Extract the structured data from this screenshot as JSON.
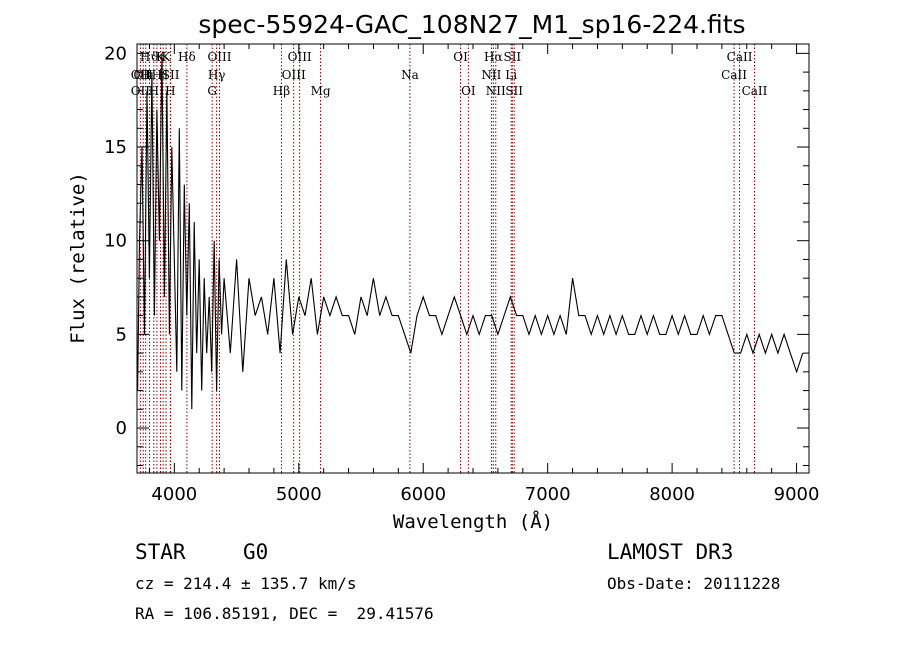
{
  "chart_data": {
    "type": "line",
    "title": "spec-55924-GAC_108N27_M1_sp16-224.fits",
    "xlabel": "Wavelength (Å)",
    "ylabel": "Flux (relative)",
    "xlim": [
      3700,
      9100
    ],
    "ylim": [
      -2.4,
      20.5
    ],
    "xticks": [
      4000,
      5000,
      6000,
      7000,
      8000,
      9000
    ],
    "yticks": [
      0,
      5,
      10,
      15,
      20
    ],
    "grid": false,
    "legend": "none",
    "line_color": "#000000",
    "marker_color": "#8b0000",
    "series": [
      {
        "x": [
          3705,
          3720,
          3740,
          3760,
          3780,
          3800,
          3820,
          3840,
          3860,
          3880,
          3900,
          3920,
          3940,
          3960,
          3980,
          4000,
          4020,
          4040,
          4060,
          4080,
          4100,
          4120,
          4140,
          4160,
          4180,
          4200,
          4220,
          4240,
          4260,
          4280,
          4300,
          4320,
          4340,
          4360,
          4380,
          4400,
          4450,
          4500,
          4550,
          4600,
          4650,
          4700,
          4750,
          4800,
          4850,
          4900,
          4950,
          5000,
          5050,
          5100,
          5150,
          5200,
          5250,
          5300,
          5350,
          5400,
          5450,
          5500,
          5550,
          5600,
          5650,
          5700,
          5750,
          5800,
          5850,
          5900,
          5950,
          6000,
          6050,
          6100,
          6150,
          6200,
          6250,
          6300,
          6350,
          6400,
          6450,
          6500,
          6550,
          6600,
          6650,
          6700,
          6750,
          6800,
          6850,
          6900,
          6950,
          7000,
          7050,
          7100,
          7150,
          7200,
          7250,
          7300,
          7350,
          7400,
          7450,
          7500,
          7550,
          7600,
          7650,
          7700,
          7750,
          7800,
          7850,
          7900,
          7950,
          8000,
          8050,
          8100,
          8150,
          8200,
          8250,
          8300,
          8350,
          8400,
          8450,
          8500,
          8550,
          8600,
          8650,
          8700,
          8750,
          8800,
          8850,
          8900,
          8950,
          9000,
          9050
        ],
        "y": [
          2,
          10,
          15,
          5,
          18,
          8,
          19,
          6,
          17,
          10,
          20,
          7,
          18,
          5,
          15,
          9,
          3,
          16,
          2,
          13,
          6,
          12,
          1,
          11,
          4,
          9,
          2,
          8,
          4,
          7,
          3,
          10,
          2,
          9,
          5,
          8,
          4,
          9,
          3,
          8,
          6,
          7,
          5,
          8,
          4,
          9,
          5,
          7,
          6,
          8,
          5,
          7,
          6,
          7,
          6,
          6,
          5,
          7,
          6,
          8,
          6,
          7,
          6,
          6,
          5,
          4,
          6,
          7,
          6,
          6,
          5,
          6,
          7,
          6,
          5,
          6,
          5,
          6,
          6,
          5,
          6,
          7,
          6,
          6,
          5,
          6,
          5,
          6,
          5,
          6,
          5,
          8,
          6,
          6,
          5,
          6,
          5,
          6,
          5,
          6,
          5,
          5,
          6,
          5,
          6,
          5,
          5,
          6,
          5,
          6,
          5,
          5,
          6,
          5,
          6,
          6,
          5,
          4,
          4,
          5,
          4,
          5,
          4,
          5,
          4,
          5,
          4,
          3,
          4
        ]
      }
    ],
    "line_markers": [
      {
        "x": 3727,
        "label": "OII",
        "row": 1
      },
      {
        "x": 3727,
        "label": "OII",
        "row": 2
      },
      {
        "x": 3750,
        "label": "OII",
        "row": 1
      },
      {
        "x": 3770,
        "label": "H",
        "row": 1
      },
      {
        "x": 3800,
        "label": "Hϑ",
        "row": 0
      },
      {
        "x": 3835,
        "label": "H",
        "row": 2
      },
      {
        "x": 3860,
        "label": "H",
        "row": 1
      },
      {
        "x": 3889,
        "label": "K",
        "row": 0
      },
      {
        "x": 3910,
        "label": "H",
        "row": 1
      },
      {
        "x": 3933,
        "label": "K",
        "row": 0
      },
      {
        "x": 3968,
        "label": "H",
        "row": 2
      },
      {
        "x": 3970,
        "label": "SII",
        "row": 1
      },
      {
        "x": 4101,
        "label": "Hδ",
        "row": 0
      },
      {
        "x": 4304,
        "label": "G",
        "row": 2
      },
      {
        "x": 4340,
        "label": "Hγ",
        "row": 1
      },
      {
        "x": 4363,
        "label": "OIII",
        "row": 0
      },
      {
        "x": 4861,
        "label": "Hβ",
        "row": 2
      },
      {
        "x": 4959,
        "label": "OIII",
        "row": 1
      },
      {
        "x": 5007,
        "label": "OIII",
        "row": 0
      },
      {
        "x": 5175,
        "label": "Mg",
        "row": 2
      },
      {
        "x": 5893,
        "label": "Na",
        "row": 1
      },
      {
        "x": 6300,
        "label": "OI",
        "row": 0
      },
      {
        "x": 6363,
        "label": "OI",
        "row": 2
      },
      {
        "x": 6548,
        "label": "NII",
        "row": 1
      },
      {
        "x": 6563,
        "label": "Hα",
        "row": 0
      },
      {
        "x": 6583,
        "label": "NII",
        "row": 2
      },
      {
        "x": 6707,
        "label": "Li",
        "row": 1
      },
      {
        "x": 6716,
        "label": "SII",
        "row": 0
      },
      {
        "x": 6731,
        "label": "SII",
        "row": 2
      },
      {
        "x": 8498,
        "label": "CaII",
        "row": 1
      },
      {
        "x": 8542,
        "label": "CaII",
        "row": 0
      },
      {
        "x": 8662,
        "label": "CaII",
        "row": 2
      }
    ]
  },
  "info": {
    "class": "STAR",
    "subclass": "G0",
    "survey": "LAMOST DR3",
    "cz": "cz = 214.4 ± 135.7 km/s",
    "obs_date": "Obs-Date: 20111228",
    "coords": "RA = 106.85191, DEC =  29.41576"
  }
}
